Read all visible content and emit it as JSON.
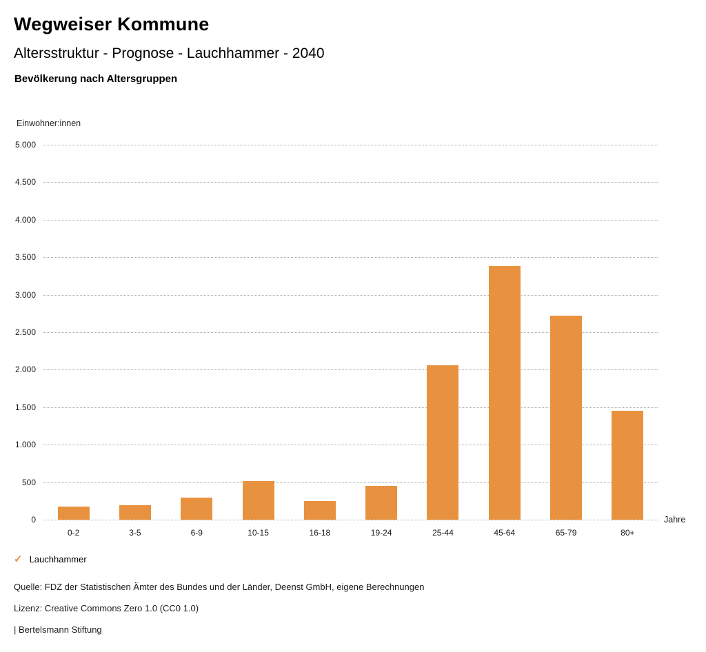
{
  "header": {
    "title": "Wegweiser Kommune",
    "subtitle": "Altersstruktur - Prognose - Lauchhammer - 2040",
    "chart_heading": "Bevölkerung nach Altersgruppen"
  },
  "chart_data": {
    "type": "bar",
    "title": "Bevölkerung nach Altersgruppen",
    "ylabel": "Einwohner:innen",
    "xlabel": "Jahre",
    "categories": [
      "0-2",
      "3-5",
      "6-9",
      "10-15",
      "16-18",
      "19-24",
      "25-44",
      "45-64",
      "65-79",
      "80+"
    ],
    "values": [
      175,
      195,
      290,
      515,
      250,
      450,
      2060,
      3380,
      2720,
      1450
    ],
    "series_name": "Lauchhammer",
    "ylim": [
      0,
      5000
    ],
    "ytick_step": 500,
    "ytick_labels": [
      "0",
      "500",
      "1.000",
      "1.500",
      "2.000",
      "2.500",
      "3.000",
      "3.500",
      "4.000",
      "4.500",
      "5.000"
    ],
    "grid": "horizontal-dotted",
    "legend_position": "bottom-left",
    "bar_color": "#E8923F"
  },
  "legend": {
    "check_icon": "✓",
    "label": "Lauchhammer"
  },
  "footer": {
    "source": "Quelle: FDZ der Statistischen Ämter des Bundes und der Länder, Deenst GmbH, eigene Berechnungen",
    "license": "Lizenz: Creative Commons Zero 1.0 (CC0 1.0)",
    "attribution": "| Bertelsmann Stiftung"
  },
  "colors": {
    "accent": "#E8923F",
    "grid": "#ABABAB",
    "text": "#1A1A1A"
  }
}
